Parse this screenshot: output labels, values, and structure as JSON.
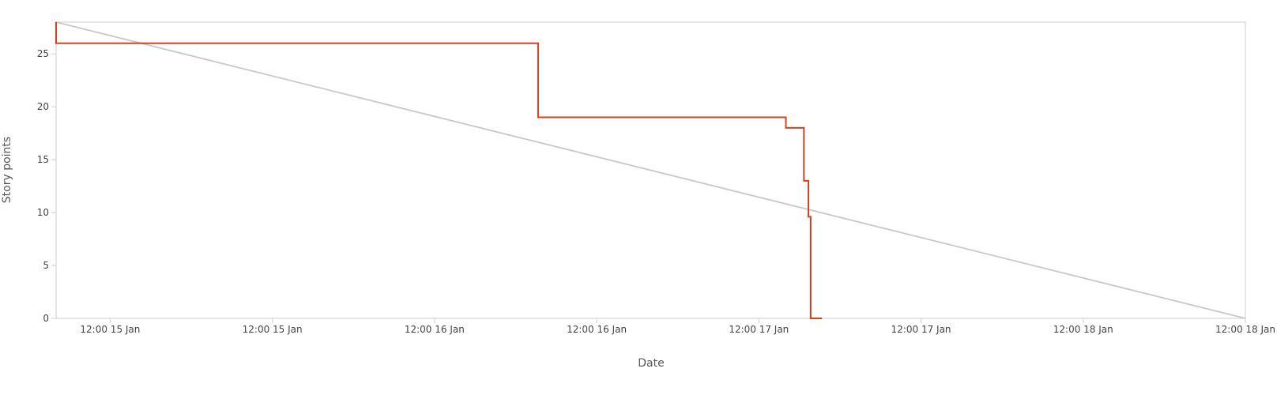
{
  "chart_data": {
    "type": "line",
    "title": "",
    "xlabel": "Date",
    "ylabel": "Story points",
    "xlim": [
      "2024-01-14T20:00",
      "2024-01-18T12:00"
    ],
    "ylim": [
      0,
      28
    ],
    "y_ticks": [
      0,
      5,
      10,
      15,
      20,
      25
    ],
    "x_ticks": [
      {
        "value": "2024-01-15T00:00",
        "label": "12:00 15 Jan"
      },
      {
        "value": "2024-01-15T12:00",
        "label": "12:00 15 Jan"
      },
      {
        "value": "2024-01-16T00:00",
        "label": "12:00 16 Jan"
      },
      {
        "value": "2024-01-16T12:00",
        "label": "12:00 16 Jan"
      },
      {
        "value": "2024-01-17T00:00",
        "label": "12:00 17 Jan"
      },
      {
        "value": "2024-01-17T12:00",
        "label": "12:00 17 Jan"
      },
      {
        "value": "2024-01-18T00:00",
        "label": "12:00 18 Jan"
      },
      {
        "value": "2024-01-18T12:00",
        "label": "12:00 18 Jan"
      }
    ],
    "grid": false,
    "legend": "none",
    "series": [
      {
        "color": "#d7401b",
        "step": true,
        "points": [
          {
            "x": "2024-01-14T20:00",
            "y": 28
          },
          {
            "x": "2024-01-14T20:00",
            "y": 26
          },
          {
            "x": "2024-01-16T07:40",
            "y": 19
          },
          {
            "x": "2024-01-17T02:00",
            "y": 18
          },
          {
            "x": "2024-01-17T03:20",
            "y": 13
          },
          {
            "x": "2024-01-17T03:40",
            "y": 9.6
          },
          {
            "x": "2024-01-17T03:50",
            "y": 0
          },
          {
            "x": "2024-01-17T04:40",
            "y": 0
          }
        ]
      },
      {
        "color": "#c8c8c8",
        "step": false,
        "points": [
          {
            "x": "2024-01-14T20:00",
            "y": 28
          },
          {
            "x": "2024-01-18T12:00",
            "y": 0
          }
        ]
      }
    ]
  }
}
